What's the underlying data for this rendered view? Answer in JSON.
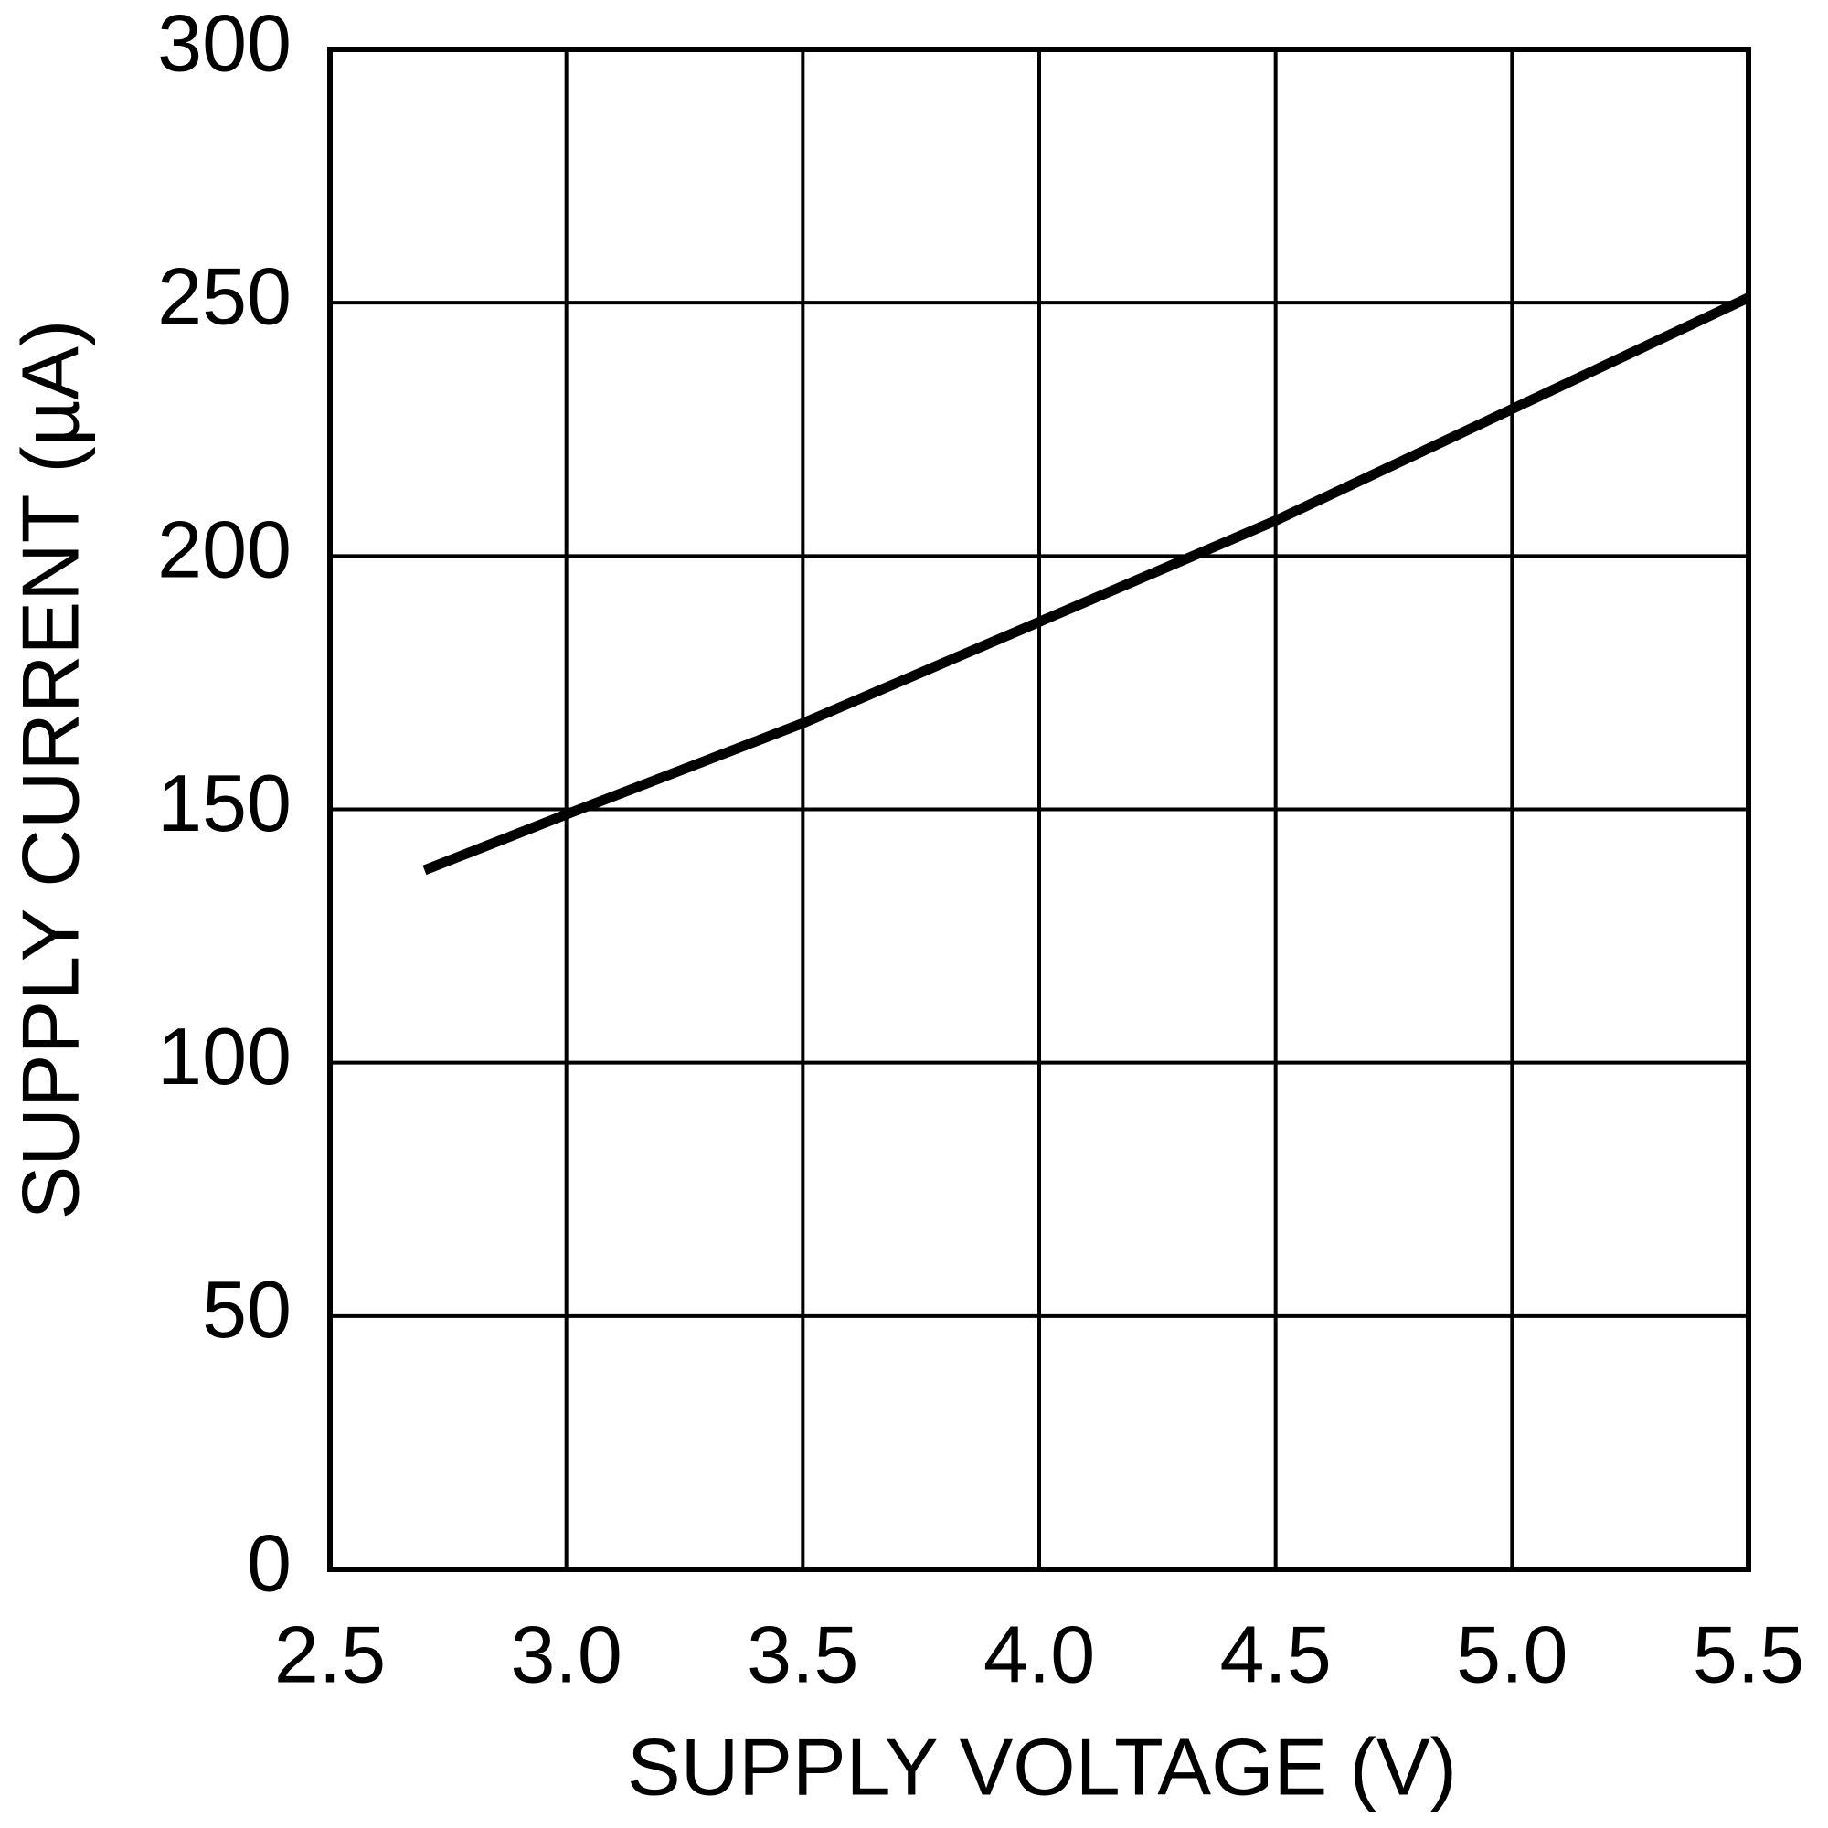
{
  "chart_data": {
    "type": "line",
    "x_label": "SUPPLY VOLTAGE (V)",
    "y_label": "SUPPLY CURRENT (µA)",
    "x": [
      2.7,
      3.0,
      3.5,
      4.0,
      4.5,
      5.0,
      5.5
    ],
    "values": [
      138,
      149,
      167,
      187,
      207,
      229,
      251
    ],
    "color": "#000000",
    "xlim": [
      2.5,
      5.5
    ],
    "xticks": [
      2.5,
      {
        "value": 3,
        "label": "3.0"
      },
      3.5,
      {
        "value": 4,
        "label": "4.0"
      },
      4.5,
      {
        "value": 5,
        "label": "5.0"
      },
      5.5
    ],
    "ylim": [
      0,
      300
    ],
    "yticks": [
      0,
      50,
      100,
      150,
      200,
      250,
      300
    ],
    "grid": true
  }
}
